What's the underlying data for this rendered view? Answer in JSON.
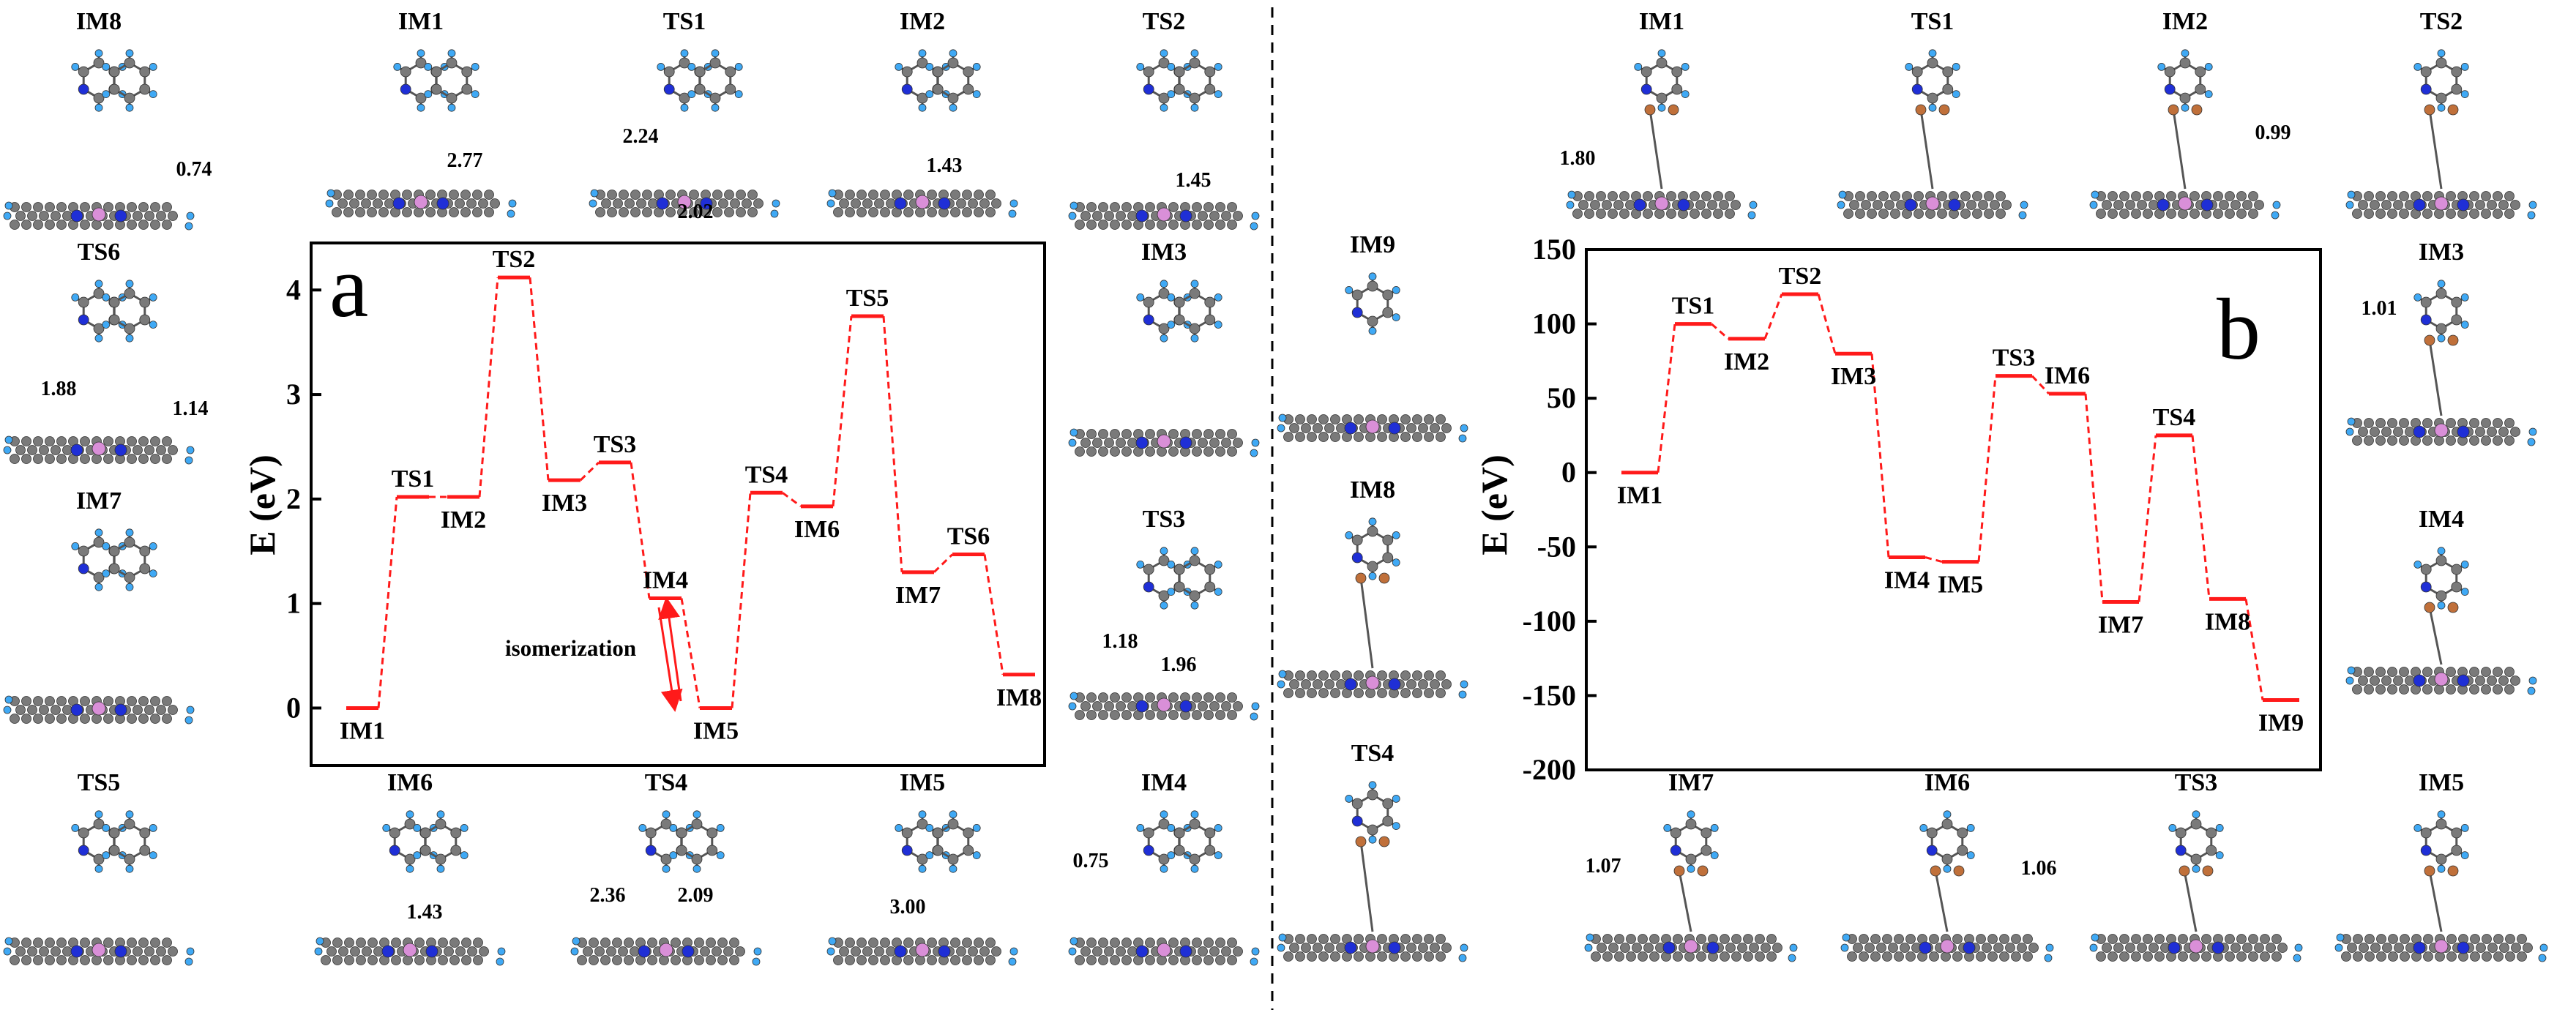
{
  "colors": {
    "profile": "#ff1a1a",
    "frame": "#000000",
    "carbon": "#7a7a7a",
    "hydrogen": "#3fa9f5",
    "nitrogen": "#1f2fd6",
    "metal": "#d98fd8",
    "ligand_atom": "#c0703a",
    "dash_line": "#000000"
  },
  "panel_a": {
    "letter": "a",
    "ylabel": "E (eV)",
    "yticks": [
      "0",
      "1",
      "2",
      "3",
      "4"
    ],
    "annotation": "isomerization",
    "structures": [
      {
        "label": "IM8",
        "distances": [
          "0.74"
        ]
      },
      {
        "label": "IM1",
        "distances": [
          "2.77"
        ]
      },
      {
        "label": "TS1",
        "distances": [
          "2.24",
          "2.02"
        ]
      },
      {
        "label": "IM2",
        "distances": [
          "1.43"
        ]
      },
      {
        "label": "TS2",
        "distances": [
          "1.45"
        ]
      },
      {
        "label": "TS6",
        "distances": [
          "1.88",
          "1.14"
        ]
      },
      {
        "label": "IM3",
        "distances": []
      },
      {
        "label": "IM7",
        "distances": []
      },
      {
        "label": "TS3",
        "distances": [
          "1.18",
          "1.96"
        ]
      },
      {
        "label": "TS5",
        "distances": []
      },
      {
        "label": "IM6",
        "distances": [
          "1.43"
        ]
      },
      {
        "label": "TS4",
        "distances": [
          "2.36",
          "2.09"
        ]
      },
      {
        "label": "IM5",
        "distances": [
          "3.00"
        ]
      },
      {
        "label": "IM4",
        "distances": [
          "0.75"
        ]
      }
    ]
  },
  "middle": {
    "structures": [
      {
        "label": "IM9"
      },
      {
        "label": "IM8"
      },
      {
        "label": "TS4"
      }
    ]
  },
  "panel_b": {
    "letter": "b",
    "ylabel": "E (eV)",
    "yticks": [
      "150",
      "100",
      "50",
      "0",
      "-50",
      "-100",
      "-150",
      "-200"
    ],
    "structures": [
      {
        "label": "IM1",
        "distances": [
          "1.80"
        ]
      },
      {
        "label": "TS1",
        "distances": []
      },
      {
        "label": "IM2",
        "distances": [
          "0.99"
        ]
      },
      {
        "label": "TS2",
        "distances": []
      },
      {
        "label": "IM3",
        "distances": [
          "1.01"
        ]
      },
      {
        "label": "IM4",
        "distances": []
      },
      {
        "label": "IM7",
        "distances": [
          "1.07"
        ]
      },
      {
        "label": "IM6",
        "distances": [
          "1.06"
        ]
      },
      {
        "label": "TS3",
        "distances": []
      },
      {
        "label": "IM5",
        "distances": []
      }
    ]
  },
  "chart_data": [
    {
      "type": "line",
      "ylabel": "E (eV)",
      "ylim": [
        -0.55,
        4.45
      ],
      "yticks": [
        0,
        1,
        2,
        3,
        4
      ],
      "grid": false,
      "annotations": [
        "isomerization"
      ],
      "series": [
        {
          "points": [
            {
              "label": "IM1",
              "y": 0.0
            },
            {
              "label": "TS1",
              "y": 2.02
            },
            {
              "label": "IM2",
              "y": 2.02
            },
            {
              "label": "TS2",
              "y": 4.12
            },
            {
              "label": "IM3",
              "y": 2.18
            },
            {
              "label": "TS3",
              "y": 2.35
            },
            {
              "label": "IM4",
              "y": 1.05
            },
            {
              "label": "IM5",
              "y": 0.0
            },
            {
              "label": "TS4",
              "y": 2.06
            },
            {
              "label": "IM6",
              "y": 1.93
            },
            {
              "label": "TS5",
              "y": 3.75
            },
            {
              "label": "IM7",
              "y": 1.3
            },
            {
              "label": "TS6",
              "y": 1.47
            },
            {
              "label": "IM8",
              "y": 0.32
            }
          ]
        }
      ]
    },
    {
      "type": "line",
      "ylabel": "E (eV)",
      "ylim": [
        -200,
        150
      ],
      "yticks": [
        150,
        100,
        50,
        0,
        -50,
        -100,
        -150,
        -200
      ],
      "grid": false,
      "series": [
        {
          "points": [
            {
              "label": "IM1",
              "y": 0
            },
            {
              "label": "TS1",
              "y": 100
            },
            {
              "label": "IM2",
              "y": 90
            },
            {
              "label": "TS2",
              "y": 120
            },
            {
              "label": "IM3",
              "y": 80
            },
            {
              "label": "IM4",
              "y": -57
            },
            {
              "label": "IM5",
              "y": -60
            },
            {
              "label": "TS3",
              "y": 65
            },
            {
              "label": "IM6",
              "y": 53
            },
            {
              "label": "IM7",
              "y": -87
            },
            {
              "label": "TS4",
              "y": 25
            },
            {
              "label": "IM8",
              "y": -85
            },
            {
              "label": "IM9",
              "y": -153
            }
          ]
        }
      ]
    }
  ]
}
